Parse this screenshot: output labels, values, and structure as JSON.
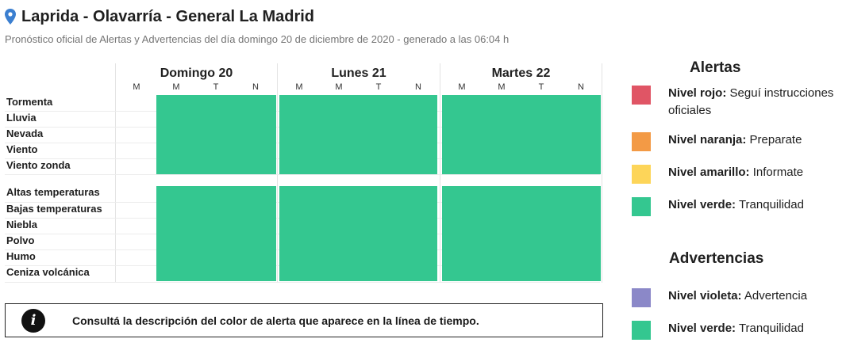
{
  "header": {
    "title": "Laprida - Olavarría - General La Madrid",
    "subtitle": "Pronóstico oficial de Alertas y Advertencias del día domingo 20 de diciembre de 2020 - generado a las 06:04 h"
  },
  "days": [
    {
      "label": "Domingo 20",
      "columns": [
        "M",
        "M",
        "T",
        "N"
      ]
    },
    {
      "label": "Lunes 21",
      "columns": [
        "M",
        "M",
        "T",
        "N"
      ]
    },
    {
      "label": "Martes 22",
      "columns": [
        "M",
        "M",
        "T",
        "N"
      ]
    }
  ],
  "phenomena_group1": [
    "Tormenta",
    "Lluvia",
    "Nevada",
    "Viento",
    "Viento zonda"
  ],
  "phenomena_group2": [
    "Altas temperaturas",
    "Bajas temperaturas",
    "Niebla",
    "Polvo",
    "Humo",
    "Ceniza volcánica"
  ],
  "timeline_note": "Consultá la descripción del color de alerta que aparece en la línea de tiempo.",
  "alerts": {
    "title": "Alertas",
    "items": [
      {
        "level": "Nivel rojo:",
        "desc": "Seguí instrucciones oficiales",
        "color": "#e05565"
      },
      {
        "level": "Nivel naranja:",
        "desc": "Preparate",
        "color": "#f39a45"
      },
      {
        "level": "Nivel amarillo:",
        "desc": "Informate",
        "color": "#fdd559"
      },
      {
        "level": "Nivel verde:",
        "desc": "Tranquilidad",
        "color": "#34c790"
      }
    ]
  },
  "warnings": {
    "title": "Advertencias",
    "items": [
      {
        "level": "Nivel violeta:",
        "desc": "Advertencia",
        "color": "#8b88c8"
      },
      {
        "level": "Nivel verde:",
        "desc": "Tranquilidad",
        "color": "#34c790"
      }
    ]
  },
  "colors": {
    "green": "#34c790",
    "pin": "#3b7fd0"
  }
}
